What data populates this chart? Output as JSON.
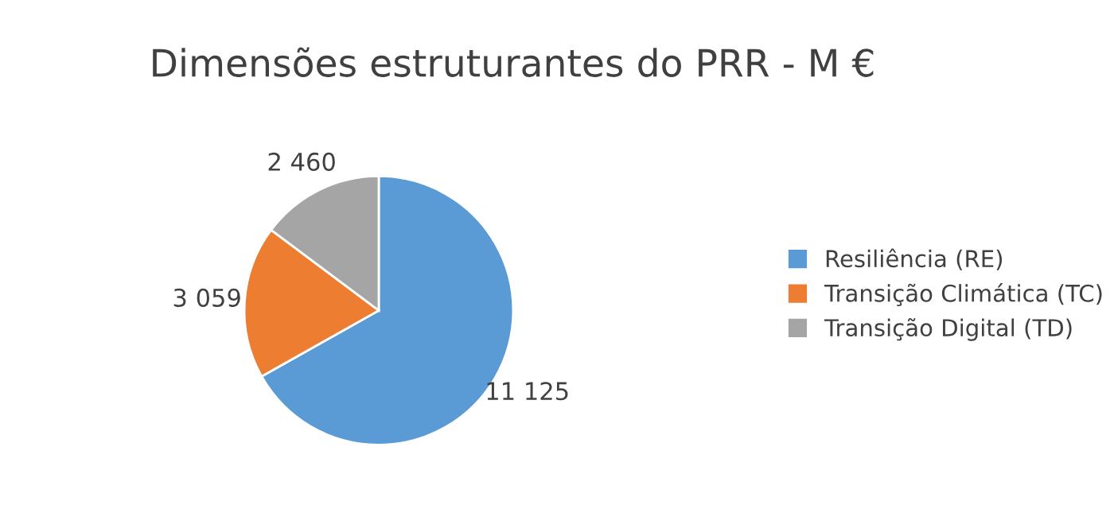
{
  "chart_data": {
    "type": "pie",
    "title": "Dimensões estruturantes do PRR - M €",
    "categories": [
      "Resiliência (RE)",
      "Transição Climática (TC)",
      "Transição Digital (TD)"
    ],
    "values": [
      11125,
      3059,
      2460
    ],
    "value_labels": [
      "11 125",
      "3 059",
      "2 460"
    ],
    "colors": [
      "#5b9bd5",
      "#ed7d31",
      "#a5a5a5"
    ],
    "legend": "right"
  }
}
